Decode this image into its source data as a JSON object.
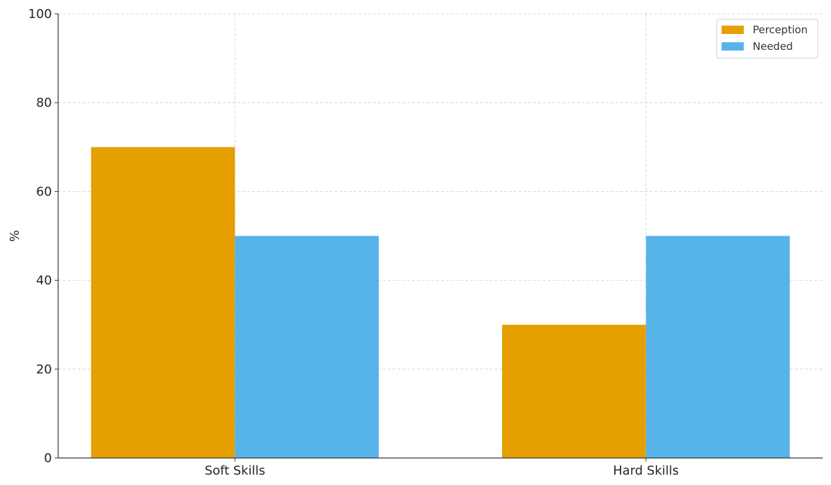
{
  "chart_data": {
    "type": "bar",
    "title": "",
    "xlabel": "",
    "ylabel": "%",
    "categories": [
      "Soft Skills",
      "Hard Skills"
    ],
    "series": [
      {
        "name": "Perception",
        "values": [
          70,
          30
        ],
        "color": "#E69F00"
      },
      {
        "name": "Needed",
        "values": [
          50,
          50
        ],
        "color": "#56B4E9"
      }
    ],
    "ylim": [
      0,
      100
    ],
    "yticks": [
      0,
      20,
      40,
      60,
      80,
      100
    ],
    "grid": true,
    "legend_position": "top-right"
  }
}
